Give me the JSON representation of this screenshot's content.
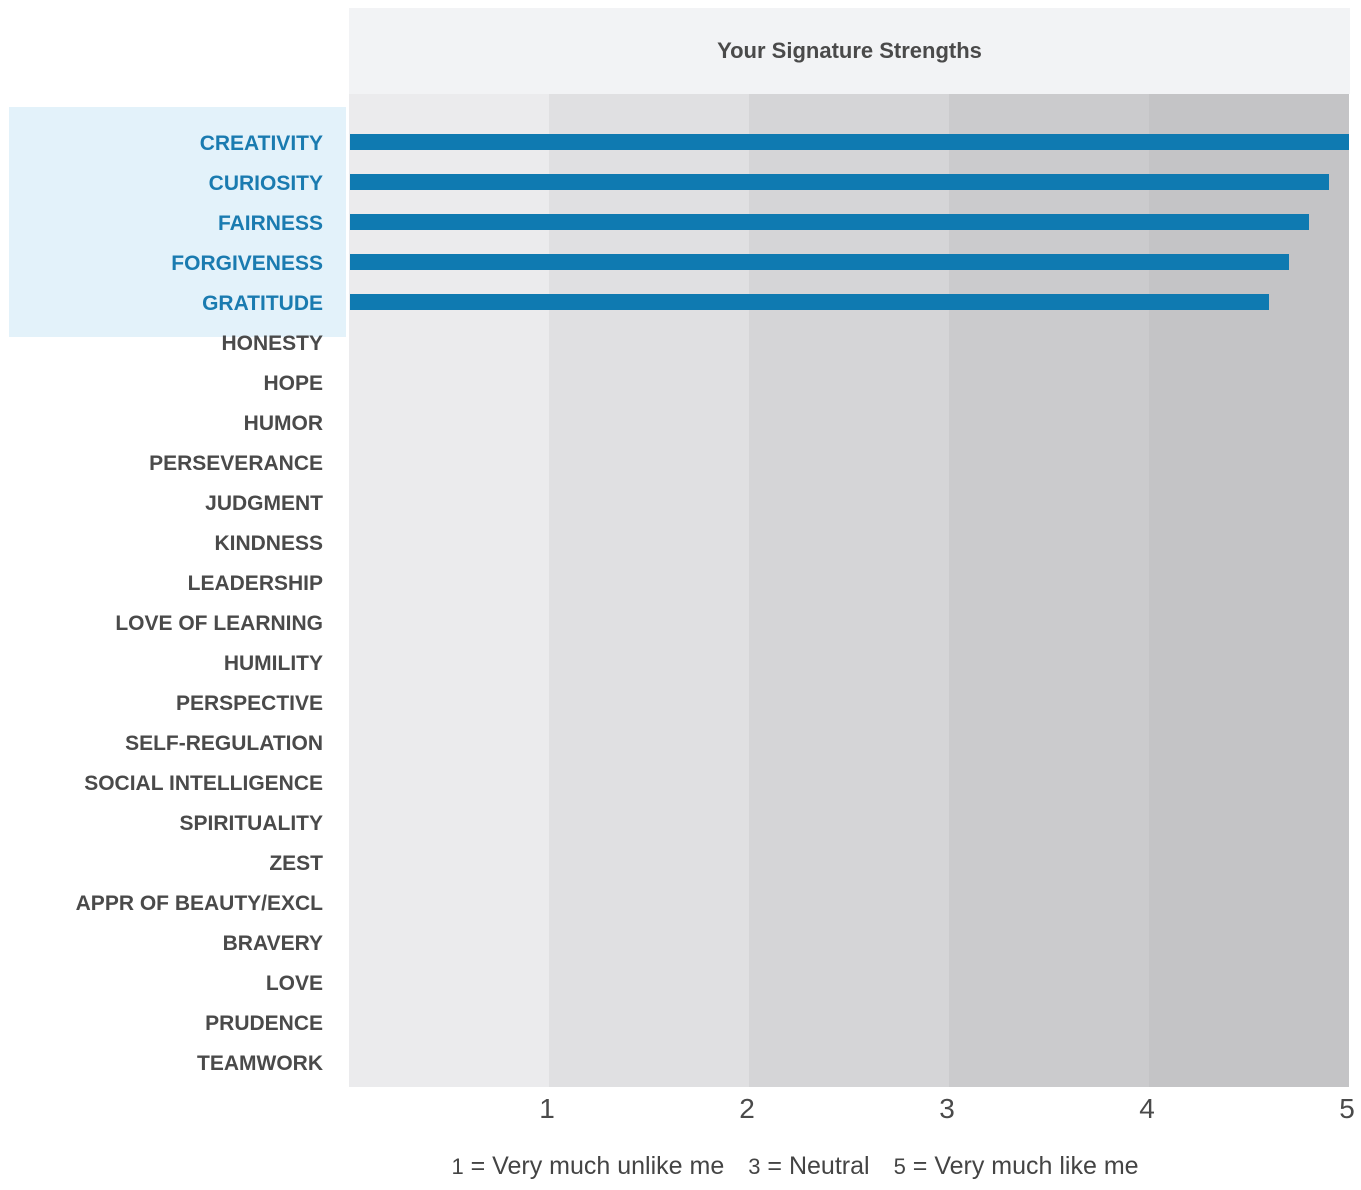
{
  "chart_data": {
    "type": "bar",
    "orientation": "horizontal",
    "title": "Your Signature Strengths",
    "categories": [
      "CREATIVITY",
      "CURIOSITY",
      "FAIRNESS",
      "FORGIVENESS",
      "GRATITUDE",
      "HONESTY",
      "HOPE",
      "HUMOR",
      "PERSEVERANCE",
      "JUDGMENT",
      "KINDNESS",
      "LEADERSHIP",
      "LOVE OF LEARNING",
      "HUMILITY",
      "PERSPECTIVE",
      "SELF-REGULATION",
      "SOCIAL INTELLIGENCE",
      "SPIRITUALITY",
      "ZEST",
      "APPR OF BEAUTY/EXCL",
      "BRAVERY",
      "LOVE",
      "PRUDENCE",
      "TEAMWORK"
    ],
    "values": [
      5.0,
      4.9,
      4.8,
      4.7,
      4.6,
      null,
      null,
      null,
      null,
      null,
      null,
      null,
      null,
      null,
      null,
      null,
      null,
      null,
      null,
      null,
      null,
      null,
      null,
      null
    ],
    "highlighted_count": 5,
    "xlim": [
      0,
      5
    ],
    "x_ticks": [
      "1",
      "2",
      "3",
      "4",
      "5"
    ],
    "grid": "alternating vertical bands",
    "colors": {
      "bar": "#0f7ab1",
      "highlight_label": "#1a7bb0",
      "highlight_band": "#e3f2fa",
      "label": "#4a4a4a",
      "bands": [
        "#ebebed",
        "#e0e0e2",
        "#d5d5d7",
        "#cbcbcd",
        "#c4c4c6"
      ]
    },
    "legend": {
      "items": [
        {
          "num": "1",
          "text": " = Very much unlike me"
        },
        {
          "num": "3",
          "text": " = Neutral"
        },
        {
          "num": "5",
          "text": " = Very much like me"
        }
      ]
    }
  }
}
